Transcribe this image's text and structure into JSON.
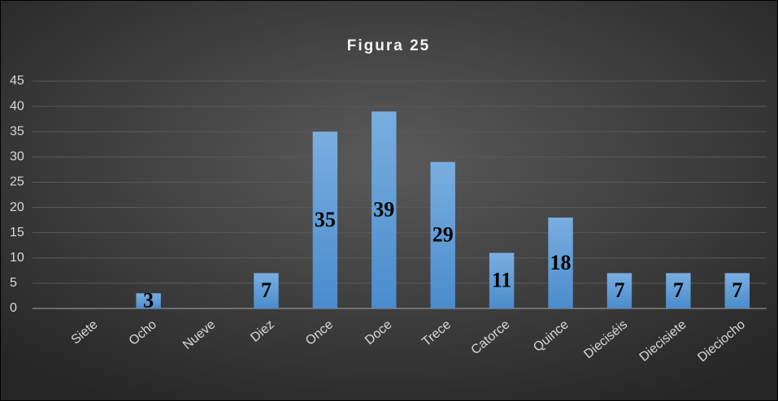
{
  "chart_data": {
    "type": "bar",
    "title": "Figura 25",
    "categories": [
      "Siete",
      "Ocho",
      "Nueve",
      "Diez",
      "Once",
      "Doce",
      "Trece",
      "Catorce",
      "Quince",
      "Dieciséis",
      "Diecisiete",
      "Dieciocho"
    ],
    "values": [
      0,
      3,
      0,
      7,
      35,
      39,
      29,
      11,
      18,
      7,
      7,
      7
    ],
    "color": "#5b9bd5",
    "ylim": [
      0,
      45
    ],
    "yticks": [
      0,
      5,
      10,
      15,
      20,
      25,
      30,
      35,
      40,
      45
    ],
    "grid": true
  }
}
